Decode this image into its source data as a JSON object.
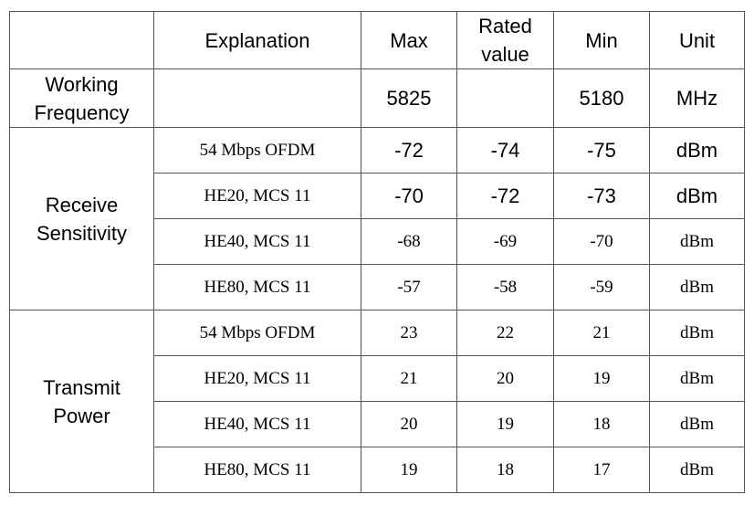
{
  "header": {
    "blank": "",
    "explanation": "Explanation",
    "max": "Max",
    "rated_line1": "Rated",
    "rated_line2": "value",
    "min": "Min",
    "unit": "Unit"
  },
  "working_frequency": {
    "label_line1": "Working",
    "label_line2": "Frequency",
    "explanation": "",
    "max": "5825",
    "rated": "",
    "min": "5180",
    "unit": "MHz"
  },
  "receive_sensitivity": {
    "label_line1": "Receive",
    "label_line2": "Sensitivity",
    "rows": [
      {
        "explanation": "54 Mbps OFDM",
        "max": "-72",
        "rated": "-74",
        "min": "-75",
        "unit": "dBm"
      },
      {
        "explanation": "HE20, MCS 11",
        "max": "-70",
        "rated": "-72",
        "min": "-73",
        "unit": "dBm"
      },
      {
        "explanation": "HE40, MCS 11",
        "max": "-68",
        "rated": "-69",
        "min": "-70",
        "unit": "dBm"
      },
      {
        "explanation": "HE80, MCS 11",
        "max": "-57",
        "rated": "-58",
        "min": "-59",
        "unit": "dBm"
      }
    ]
  },
  "transmit_power": {
    "label_line1": "Transmit",
    "label_line2": "Power",
    "rows": [
      {
        "explanation": "54 Mbps OFDM",
        "max": "23",
        "rated": "22",
        "min": "21",
        "unit": "dBm"
      },
      {
        "explanation": "HE20, MCS 11",
        "max": "21",
        "rated": "20",
        "min": "19",
        "unit": "dBm"
      },
      {
        "explanation": "HE40, MCS 11",
        "max": "20",
        "rated": "19",
        "min": "18",
        "unit": "dBm"
      },
      {
        "explanation": "HE80, MCS 11",
        "max": "19",
        "rated": "18",
        "min": "17",
        "unit": "dBm"
      }
    ]
  }
}
